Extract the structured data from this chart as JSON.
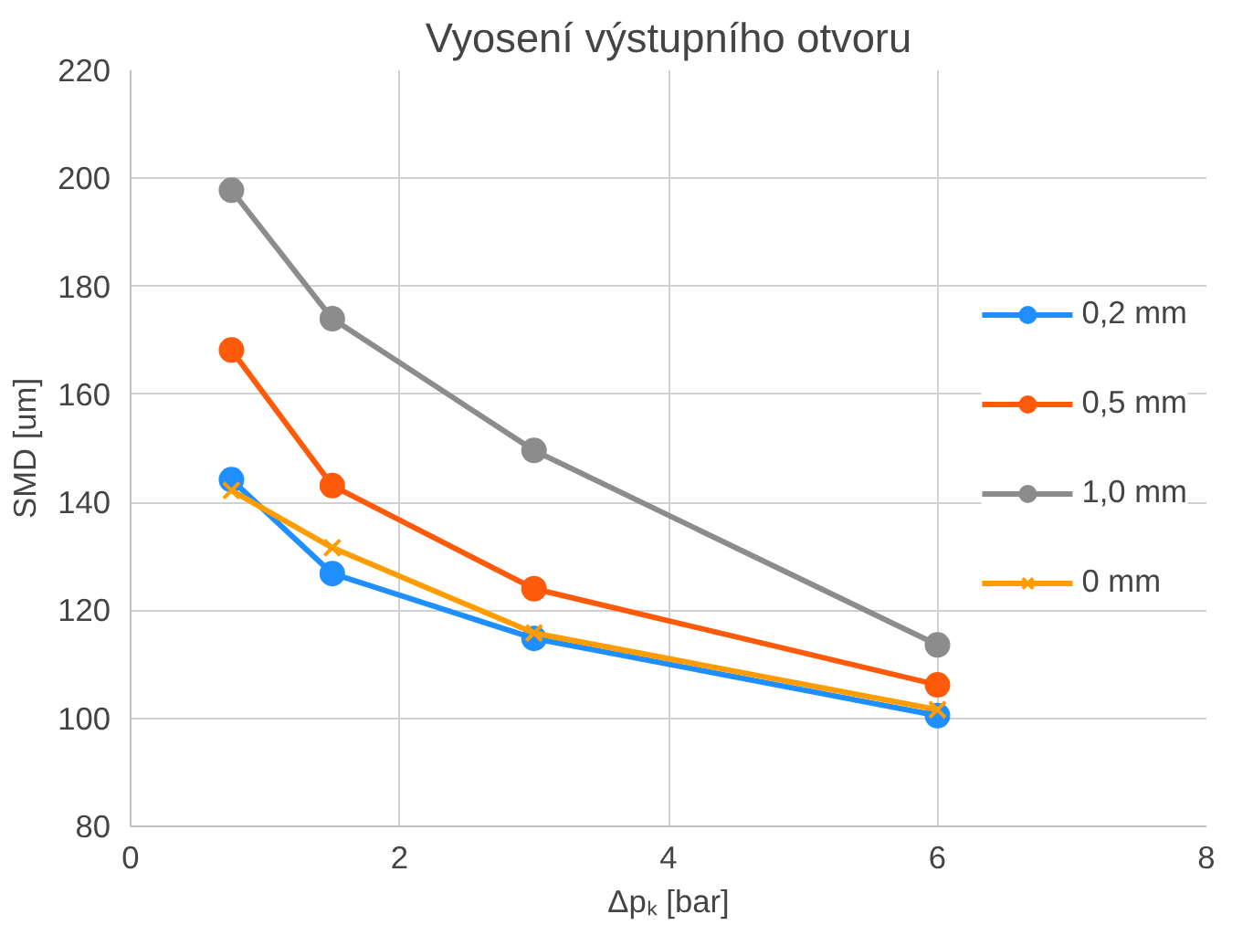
{
  "chart_data": {
    "type": "line",
    "title": "Vyosení výstupního otvoru",
    "xlabel": "Δpₖ [bar]",
    "ylabel": "SMD [um]",
    "xlim": [
      0,
      8
    ],
    "xticks": [
      0,
      2,
      4,
      6,
      8
    ],
    "ylim": [
      80,
      220
    ],
    "yticks": [
      80,
      100,
      120,
      140,
      160,
      180,
      200,
      220
    ],
    "grid": true,
    "legend": "right",
    "series": [
      {
        "name": "0,2 mm",
        "color": "#1f8fff",
        "marker": "circle",
        "x": [
          0.75,
          1.5,
          3,
          6
        ],
        "values": [
          144.2,
          126.8,
          114.8,
          100.5
        ]
      },
      {
        "name": "0,5 mm",
        "color": "#ff5a0a",
        "marker": "circle",
        "x": [
          0.75,
          1.5,
          3,
          6
        ],
        "values": [
          168.2,
          143.1,
          124,
          106.2
        ]
      },
      {
        "name": "1,0 mm",
        "color": "#8c8c8c",
        "marker": "circle",
        "x": [
          0.75,
          1.5,
          3,
          6
        ],
        "values": [
          197.8,
          174,
          149.6,
          113.6
        ]
      },
      {
        "name": "0 mm",
        "color": "#ff9c00",
        "marker": "cross",
        "x": [
          0.75,
          1.5,
          3,
          6
        ],
        "values": [
          142.2,
          131.6,
          115.8,
          101.6
        ]
      }
    ]
  }
}
